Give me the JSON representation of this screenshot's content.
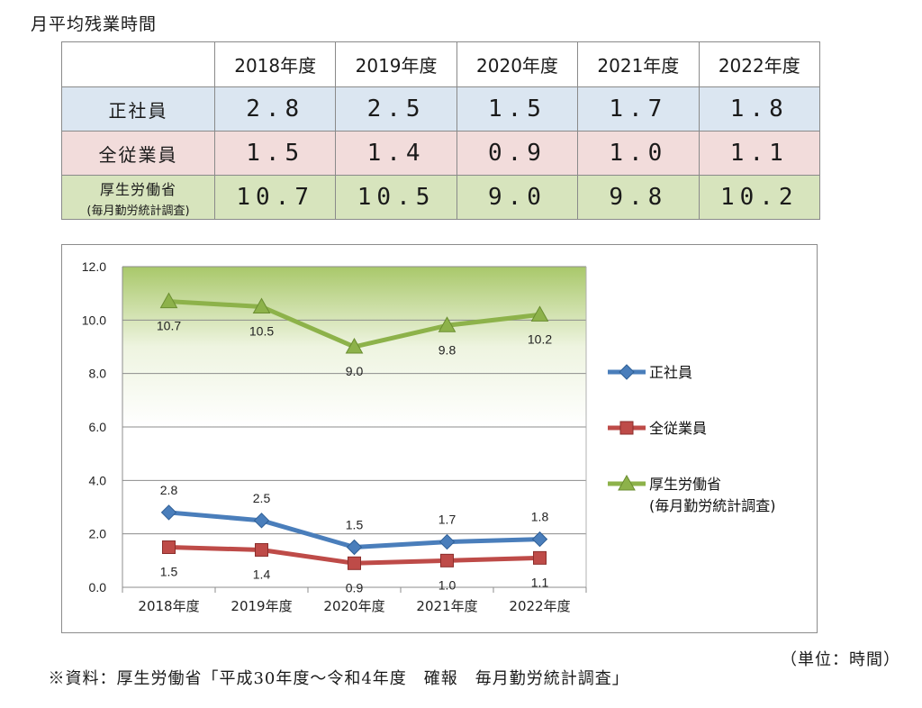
{
  "title": "月平均残業時間",
  "table": {
    "columns": [
      "2018年度",
      "2019年度",
      "2020年度",
      "2021年度",
      "2022年度"
    ],
    "rows": [
      {
        "label": "正社員",
        "sub": "",
        "values": [
          "2.8",
          "2.5",
          "1.5",
          "1.7",
          "1.8"
        ]
      },
      {
        "label": "全従業員",
        "sub": "",
        "values": [
          "1.5",
          "1.4",
          "0.9",
          "1.0",
          "1.1"
        ]
      },
      {
        "label": "厚生労働省",
        "sub": "(毎月勤労統計調査)",
        "values": [
          "10.7",
          "10.5",
          "9.0",
          "9.8",
          "10.2"
        ]
      }
    ]
  },
  "chart_data": {
    "type": "line",
    "categories": [
      "2018年度",
      "2019年度",
      "2020年度",
      "2021年度",
      "2022年度"
    ],
    "ylim": [
      0,
      12
    ],
    "yticks": [
      "0.0",
      "2.0",
      "4.0",
      "6.0",
      "8.0",
      "10.0",
      "12.0"
    ],
    "grid": true,
    "legend_position": "right",
    "series": [
      {
        "name": "正社員",
        "values": [
          2.8,
          2.5,
          1.5,
          1.7,
          1.8
        ],
        "labels": [
          "2.8",
          "2.5",
          "1.5",
          "1.7",
          "1.8"
        ],
        "label_side": "above",
        "marker": "diamond",
        "color": "#4a7ebb"
      },
      {
        "name": "全従業員",
        "values": [
          1.5,
          1.4,
          0.9,
          1.0,
          1.1
        ],
        "labels": [
          "1.5",
          "1.4",
          "0.9",
          "1.0",
          "1.1"
        ],
        "label_side": "below",
        "marker": "square",
        "color": "#be4b48"
      },
      {
        "name": "厚生労働省",
        "name_line2": "(毎月勤労統計調査)",
        "values": [
          10.7,
          10.5,
          9.0,
          9.8,
          10.2
        ],
        "labels": [
          "10.7",
          "10.5",
          "9.0",
          "9.8",
          "10.2"
        ],
        "label_side": "below",
        "marker": "triangle",
        "color": "#8db24a"
      }
    ]
  },
  "footnote": {
    "source": "※資料：厚生労働省「平成30年度～令和4年度　確報　毎月勤労統計調査」",
    "unit": "（単位：時間）"
  }
}
